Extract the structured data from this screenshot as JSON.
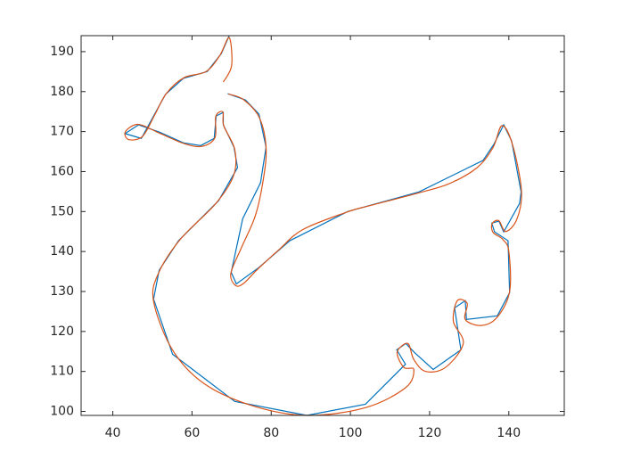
{
  "chart_data": {
    "type": "line",
    "xlim": [
      32,
      154
    ],
    "ylim": [
      99,
      194
    ],
    "xticks": [
      40,
      60,
      80,
      100,
      120,
      140
    ],
    "yticks": [
      100,
      110,
      120,
      130,
      140,
      150,
      160,
      170,
      180,
      190
    ],
    "series": [
      {
        "color": "#0072BD",
        "x": [
          69.4,
          67.4,
          63.8,
          57.8,
          53.3,
          50.3,
          47.2,
          43.1,
          46.5,
          51.7,
          57.8,
          62.2,
          65.6,
          66.1,
          67.9,
          67.9,
          70.6,
          71.5,
          66.7,
          56.6,
          51.7,
          50.3,
          55.1,
          70.8,
          89,
          103.8,
          113.9,
          111.7,
          114,
          116.2,
          120.9,
          127.9,
          126.3,
          129,
          129.3,
          137.1,
          140.2,
          139.8,
          136.4,
          135.7,
          137.5,
          138.7,
          142.7,
          143.1,
          140.7,
          138.7,
          136.2,
          133.5,
          117.3,
          99.3,
          84.7,
          76.9,
          71.2,
          69.9,
          72.8,
          77.3,
          78.7,
          76.9,
          73.5,
          69
        ],
        "values": [
          194,
          189.5,
          185,
          183.3,
          179.3,
          173.9,
          168.3,
          169.5,
          171.7,
          169.9,
          167.2,
          166.5,
          168.3,
          173.9,
          174.8,
          171.7,
          166.1,
          161,
          152.7,
          142.7,
          135.3,
          128.1,
          114.3,
          102.5,
          99,
          101.8,
          111.8,
          115.4,
          117,
          114.7,
          110.5,
          115.4,
          125.9,
          127.7,
          123,
          123.9,
          129.7,
          142.7,
          144.9,
          147.1,
          147.6,
          144.9,
          152,
          154.9,
          167.7,
          171.7,
          166.8,
          162.8,
          154.9,
          150,
          142.7,
          136,
          131.9,
          134.8,
          148.2,
          157.2,
          166.1,
          174.4,
          177.9,
          179.5
        ]
      },
      {
        "color": "#D95319",
        "smooth": true,
        "x": [
          67.9,
          70,
          69.4,
          67,
          63.5,
          58,
          53.5,
          50.5,
          47.5,
          44,
          43.2,
          46.5,
          52,
          58,
          62.5,
          65.8,
          66,
          67.8,
          68,
          70.8,
          70.5,
          66,
          57,
          51.5,
          50.3,
          55,
          63,
          75,
          89,
          104,
          114,
          116,
          113.5,
          111.8,
          114.5,
          116,
          119,
          124,
          128.5,
          126,
          127,
          129.5,
          129,
          133,
          137,
          140.2,
          140,
          138.5,
          136,
          135.8,
          137.5,
          139.2,
          142,
          143.2,
          141,
          138.3,
          136,
          132,
          125,
          117,
          105,
          99.5,
          88,
          82,
          76.5,
          73,
          71,
          69.8,
          72.5,
          76,
          78,
          78.7,
          77,
          73,
          69.2
        ],
        "values": [
          182.4,
          186.5,
          193.5,
          189,
          185,
          183.5,
          179.5,
          174,
          168.8,
          168,
          170,
          171.8,
          169.5,
          167,
          166.3,
          168.5,
          173.8,
          174.9,
          171.5,
          165.5,
          159,
          152,
          143,
          134.5,
          127.5,
          115.5,
          107,
          101.5,
          99,
          101,
          106,
          110.5,
          111,
          114.8,
          117,
          113,
          110,
          111,
          117,
          122.5,
          127.7,
          127,
          123,
          121.5,
          123.5,
          130,
          140,
          143,
          144.8,
          147,
          147.7,
          145,
          148,
          155,
          166.5,
          171.5,
          166,
          161,
          157,
          154.6,
          151.5,
          150,
          145.5,
          140.5,
          135.5,
          132,
          131.5,
          134.5,
          141,
          149,
          158,
          166,
          173.5,
          178,
          179.4
        ]
      }
    ]
  }
}
